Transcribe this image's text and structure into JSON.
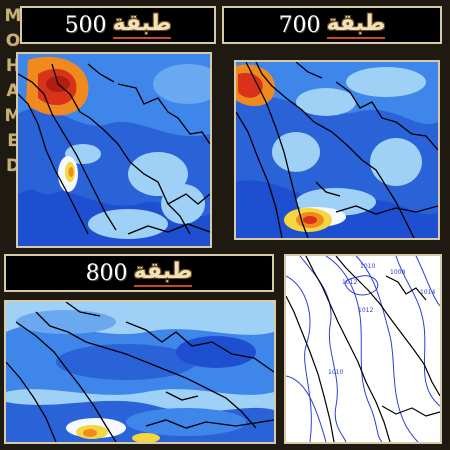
{
  "watermark": {
    "text": "MOHAMED",
    "letters": [
      "M",
      "O",
      "H",
      "A",
      "M",
      "E",
      "D"
    ]
  },
  "panels": {
    "p500": {
      "level": "500",
      "word": "طبقة"
    },
    "p700": {
      "level": "700",
      "word": "طبقة"
    },
    "p800": {
      "level": "800",
      "word": "طبقة"
    },
    "pressure": {
      "contour_labels": [
        "1010",
        "1008",
        "1012",
        "1014",
        "1012",
        "1010"
      ]
    }
  },
  "colors": {
    "background": "#1e1a12",
    "frame": "#d8c9a8",
    "deep_blue": "#1f4fd1",
    "mid_blue": "#3f86ea",
    "light_blue": "#9fd0f5",
    "white": "#f4f8ff",
    "yellow": "#f4d640",
    "orange": "#f08a1e",
    "red": "#d8321a",
    "coast": "#000000",
    "contour": "#2d3fd6"
  }
}
